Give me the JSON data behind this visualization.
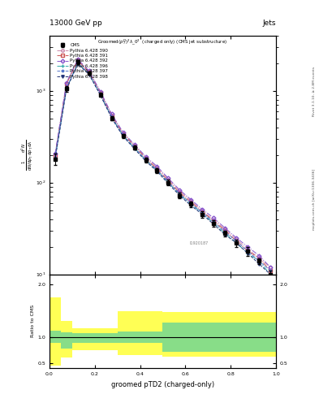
{
  "title": "13000 GeV pp",
  "title_right": "Jets",
  "xlabel": "groomed pTD2 (charged-only)",
  "ylabel_ratio": "Ratio to CMS",
  "rivet_label": "Rivet 3.1.10, ≥ 2.8M events",
  "mcplots_label": "mcplots.cern.ch [arXiv:1306.3436]",
  "inspire_label": "I1920187",
  "cms_x": [
    0.025,
    0.075,
    0.125,
    0.175,
    0.225,
    0.275,
    0.325,
    0.375,
    0.425,
    0.475,
    0.525,
    0.575,
    0.625,
    0.675,
    0.725,
    0.775,
    0.825,
    0.875,
    0.925,
    0.975
  ],
  "cms_y": [
    180,
    1050,
    2050,
    1550,
    900,
    500,
    320,
    240,
    175,
    135,
    100,
    72,
    58,
    45,
    36,
    28,
    22,
    18,
    14,
    10
  ],
  "cms_yerr": [
    25,
    70,
    90,
    70,
    45,
    25,
    18,
    13,
    10,
    9,
    7,
    5,
    4,
    4,
    3,
    2,
    2,
    2,
    1,
    1
  ],
  "series": [
    {
      "label": "Pythia 6.428 390",
      "color": "#cc88aa",
      "marker": "o",
      "markerfacecolor": "none",
      "linestyle": "-.",
      "y": [
        200,
        1200,
        2150,
        1600,
        960,
        540,
        345,
        255,
        188,
        145,
        108,
        80,
        63,
        49,
        39,
        31,
        24,
        19,
        15,
        12
      ]
    },
    {
      "label": "Pythia 6.428 391",
      "color": "#cc5555",
      "marker": "s",
      "markerfacecolor": "none",
      "linestyle": "-.",
      "y": [
        195,
        1180,
        2130,
        1585,
        950,
        530,
        338,
        250,
        183,
        140,
        104,
        77,
        61,
        48,
        38,
        30,
        23,
        18,
        15,
        11
      ]
    },
    {
      "label": "Pythia 6.428 392",
      "color": "#8855cc",
      "marker": "D",
      "markerfacecolor": "none",
      "linestyle": "-.",
      "y": [
        205,
        1220,
        2200,
        1640,
        980,
        555,
        352,
        260,
        192,
        150,
        111,
        83,
        65,
        51,
        41,
        32,
        25,
        20,
        16,
        12
      ]
    },
    {
      "label": "Pythia 6.428 396",
      "color": "#33aaaa",
      "marker": "+",
      "markerfacecolor": "none",
      "linestyle": "-.",
      "y": [
        185,
        1050,
        1980,
        1520,
        905,
        510,
        325,
        238,
        175,
        135,
        100,
        74,
        58,
        46,
        36,
        28,
        22,
        17,
        14,
        10
      ]
    },
    {
      "label": "Pythia 6.428 397",
      "color": "#5577cc",
      "marker": "*",
      "markerfacecolor": "none",
      "linestyle": "--",
      "y": [
        188,
        1060,
        1990,
        1530,
        912,
        515,
        328,
        241,
        177,
        137,
        101,
        75,
        59,
        47,
        37,
        29,
        23,
        18,
        14,
        11
      ]
    },
    {
      "label": "Pythia 6.428 398",
      "color": "#223377",
      "marker": "v",
      "markerfacecolor": "#223377",
      "linestyle": "--",
      "y": [
        180,
        1030,
        1950,
        1500,
        890,
        500,
        318,
        233,
        171,
        132,
        97,
        72,
        56,
        45,
        35,
        27,
        22,
        17,
        13,
        10
      ]
    }
  ],
  "bin_edges": [
    0.0,
    0.05,
    0.1,
    0.2,
    0.3,
    0.4,
    0.5,
    0.6,
    0.7,
    1.0
  ],
  "green_top": [
    1.12,
    1.08,
    1.07,
    1.07,
    1.1,
    1.1,
    1.28,
    1.28,
    1.28,
    1.28
  ],
  "green_bot": [
    0.88,
    0.78,
    0.88,
    0.88,
    0.88,
    0.88,
    0.72,
    0.72,
    0.72,
    0.72
  ],
  "yellow_top": [
    1.75,
    1.3,
    1.17,
    1.17,
    1.5,
    1.5,
    1.48,
    1.48,
    1.48,
    1.48
  ],
  "yellow_bot": [
    0.45,
    0.6,
    0.75,
    0.75,
    0.65,
    0.65,
    0.62,
    0.62,
    0.62,
    0.62
  ],
  "xlim": [
    0.0,
    1.0
  ],
  "ylim_main_log": [
    10,
    4000
  ],
  "ylim_ratio": [
    0.4,
    2.2
  ],
  "ratio_yticks": [
    0.5,
    1.0,
    2.0
  ],
  "background_color": "#ffffff"
}
